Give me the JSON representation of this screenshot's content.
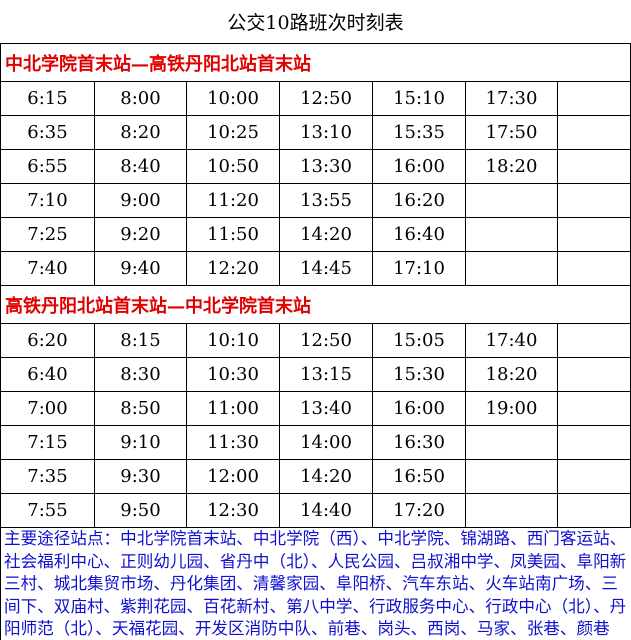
{
  "title": "公交10路班次时刻表",
  "sections": [
    {
      "heading": "中北学院首末站—高铁丹阳北站首末站",
      "rows": [
        [
          "6:15",
          "8:00",
          "10:00",
          "12:50",
          "15:10",
          "17:30",
          null
        ],
        [
          "6:35",
          "8:20",
          "10:25",
          "13:10",
          "15:35",
          "17:50",
          null
        ],
        [
          "6:55",
          "8:40",
          "10:50",
          "13:30",
          "16:00",
          "18:20",
          null
        ],
        [
          "7:10",
          "9:00",
          "11:20",
          "13:55",
          "16:20",
          null,
          null
        ],
        [
          "7:25",
          "9:20",
          "11:50",
          "14:20",
          "16:40",
          null,
          null
        ],
        [
          "7:40",
          "9:40",
          "12:20",
          "14:45",
          "17:10",
          null,
          null
        ]
      ]
    },
    {
      "heading": "高铁丹阳北站首末站—中北学院首末站",
      "rows": [
        [
          "6:20",
          "8:15",
          "10:10",
          "12:50",
          "15:05",
          "17:40",
          null
        ],
        [
          "6:40",
          "8:30",
          "10:30",
          "13:15",
          "15:30",
          "18:20",
          null
        ],
        [
          "7:00",
          "8:50",
          "11:00",
          "13:40",
          "16:00",
          "19:00",
          null
        ],
        [
          "7:15",
          "9:10",
          "11:30",
          "14:00",
          "16:30",
          null,
          null
        ],
        [
          "7:35",
          "9:30",
          "12:00",
          "14:20",
          "16:50",
          null,
          null
        ],
        [
          "7:55",
          "9:50",
          "12:30",
          "14:40",
          "17:20",
          null,
          null
        ]
      ]
    }
  ],
  "footer": "主要途径站点：中北学院首末站、中北学院（西）、中北学院、锦湖路、西门客运站、社会福利中心、正则幼儿园、省丹中（北）、人民公园、吕叔湘中学、凤美园、阜阳新三村、城北集贸市场、丹化集团、清馨家园、阜阳桥、汽车东站、火车站南广场、三间下、双庙村、紫荆花园、百花新村、第八中学、行政服务中心、行政中心（北）、丹阳师范（北）、天福花园、开发区消防中队、前巷、岗头、西岗、马家、张巷、颜巷（北）、颜巷、高铁丹阳北站首末站"
}
